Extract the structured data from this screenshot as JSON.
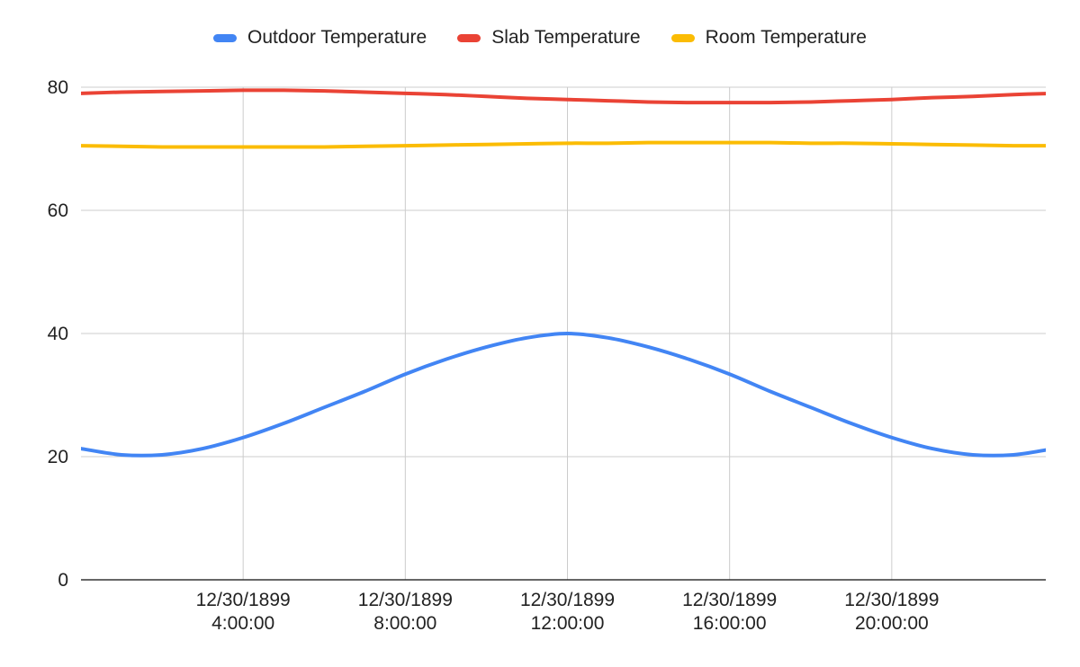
{
  "chart_data": {
    "type": "line",
    "x_unit": "hour",
    "x": [
      0,
      1,
      2,
      3,
      4,
      5,
      6,
      7,
      8,
      9,
      10,
      11,
      12,
      13,
      14,
      15,
      16,
      17,
      18,
      19,
      20,
      21,
      22,
      23,
      24
    ],
    "xlim": [
      0,
      23.8
    ],
    "x_ticks": [
      {
        "x": 4,
        "line1": "12/30/1899",
        "line2": "4:00:00"
      },
      {
        "x": 8,
        "line1": "12/30/1899",
        "line2": "8:00:00"
      },
      {
        "x": 12,
        "line1": "12/30/1899",
        "line2": "12:00:00"
      },
      {
        "x": 16,
        "line1": "12/30/1899",
        "line2": "16:00:00"
      },
      {
        "x": 20,
        "line1": "12/30/1899",
        "line2": "20:00:00"
      }
    ],
    "ylim": [
      0,
      80
    ],
    "y_ticks": [
      0,
      20,
      40,
      60,
      80
    ],
    "grid": true,
    "legend_position": "top-center",
    "series": [
      {
        "name": "Outdoor Temperature",
        "color": "#4285f4",
        "values": [
          21.3,
          20.3,
          20.3,
          21.3,
          23.1,
          25.4,
          28.0,
          30.6,
          33.4,
          35.8,
          37.8,
          39.3,
          40.0,
          39.3,
          37.8,
          35.8,
          33.4,
          30.6,
          28.0,
          25.4,
          23.1,
          21.3,
          20.3,
          20.3,
          21.3
        ]
      },
      {
        "name": "Slab Temperature",
        "color": "#ea4335",
        "values": [
          79.0,
          79.2,
          79.3,
          79.4,
          79.5,
          79.5,
          79.4,
          79.2,
          79.0,
          78.8,
          78.5,
          78.2,
          78.0,
          77.8,
          77.6,
          77.5,
          77.5,
          77.5,
          77.6,
          77.8,
          78.0,
          78.3,
          78.5,
          78.8,
          79.0
        ]
      },
      {
        "name": "Room Temperature",
        "color": "#fbbc04",
        "values": [
          70.5,
          70.4,
          70.3,
          70.3,
          70.3,
          70.3,
          70.3,
          70.4,
          70.5,
          70.6,
          70.7,
          70.8,
          70.9,
          70.9,
          71.0,
          71.0,
          71.0,
          71.0,
          70.9,
          70.9,
          70.8,
          70.7,
          70.6,
          70.5,
          70.5
        ]
      }
    ]
  }
}
